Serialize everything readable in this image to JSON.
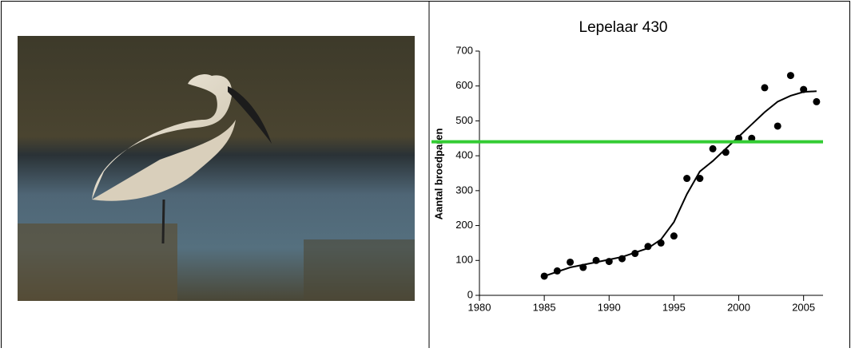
{
  "chart_data": {
    "type": "scatter",
    "title": "Lepelaar 430",
    "y_label": "Aantal broedparen",
    "x": [
      1985,
      1986,
      1987,
      1988,
      1989,
      1990,
      1991,
      1992,
      1993,
      1994,
      1995,
      1996,
      1997,
      1998,
      1999,
      2000,
      2001,
      2002,
      2003,
      2004,
      2005,
      2006
    ],
    "values": [
      55,
      70,
      95,
      80,
      100,
      97,
      105,
      120,
      140,
      150,
      170,
      335,
      335,
      420,
      410,
      450,
      450,
      595,
      485,
      630,
      590,
      555
    ],
    "color": "#000000",
    "trend": {
      "x": [
        1985,
        1987,
        1989,
        1991,
        1993,
        1994,
        1995,
        1996,
        1997,
        1998,
        1999,
        2000,
        2001,
        2002,
        2003,
        2004,
        2005,
        2006
      ],
      "values": [
        55,
        80,
        95,
        110,
        135,
        160,
        210,
        290,
        355,
        385,
        420,
        455,
        490,
        525,
        555,
        572,
        583,
        585
      ],
      "color": "#000000"
    },
    "reference_line": {
      "value": 440,
      "color": "#33cc33"
    },
    "xlim": [
      1980,
      2006.5
    ],
    "ylim": [
      0,
      700
    ],
    "xticks": [
      1980,
      1985,
      1990,
      1995,
      2000,
      2005
    ],
    "yticks": [
      0,
      100,
      200,
      300,
      400,
      500,
      600,
      700
    ]
  }
}
